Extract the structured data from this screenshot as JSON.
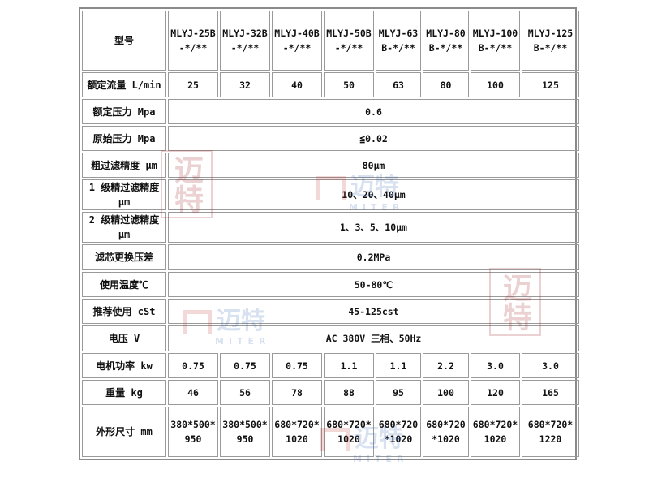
{
  "table": {
    "header": {
      "label": "型号",
      "models": [
        [
          "MLYJ-25B",
          "-*/**"
        ],
        [
          "MLYJ-32B",
          "-*/**"
        ],
        [
          "MLYJ-40B",
          "-*/**"
        ],
        [
          "MLYJ-50B",
          "-*/**"
        ],
        [
          "MLYJ-63",
          "B-*/**"
        ],
        [
          "MLYJ-80",
          "B-*/**"
        ],
        [
          "MLYJ-100",
          "B-*/**"
        ],
        [
          "MLYJ-125",
          "B-*/**"
        ]
      ]
    },
    "flow": {
      "label": "额定流量 L/min",
      "values": [
        "25",
        "32",
        "40",
        "50",
        "63",
        "80",
        "100",
        "125"
      ]
    },
    "spans": [
      {
        "label": "额定压力 Mpa",
        "value": "0.6"
      },
      {
        "label": "原始压力 Mpa",
        "value": "≦0.02"
      },
      {
        "label": "粗过滤精度 μm",
        "value": "80μm"
      },
      {
        "label": "1 级精过滤精度 μm",
        "value": "10、20、40μm"
      },
      {
        "label": "2 级精过滤精度 μm",
        "value": "1、3、5、10μm"
      },
      {
        "label": "滤芯更换压差",
        "value": "0.2MPa"
      },
      {
        "label": "使用温度℃",
        "value": "50-80℃"
      },
      {
        "label": "推荐使用 cSt",
        "value": "45-125cst"
      },
      {
        "label": "电压 V",
        "value": "AC 380V 三相、50Hz"
      }
    ],
    "power": {
      "label": "电机功率 kw",
      "values": [
        "0.75",
        "0.75",
        "0.75",
        "1.1",
        "1.1",
        "2.2",
        "3.0",
        "3.0"
      ]
    },
    "weight": {
      "label": "重量 kg",
      "values": [
        "46",
        "56",
        "78",
        "88",
        "95",
        "100",
        "120",
        "165"
      ]
    },
    "size": {
      "label": "外形尺寸 mm",
      "values": [
        [
          "380*500*",
          "950"
        ],
        [
          "380*500*",
          "950"
        ],
        [
          "680*720*",
          "1020"
        ],
        [
          "680*720*",
          "1020"
        ],
        [
          "680*720",
          "*1020"
        ],
        [
          "680*720",
          "*1020"
        ],
        [
          "680*720*",
          "1020"
        ],
        [
          "680*720*",
          "1220"
        ]
      ]
    }
  },
  "watermark": {
    "text": "迈特",
    "subtext": "MITER",
    "seal": "迈特"
  }
}
